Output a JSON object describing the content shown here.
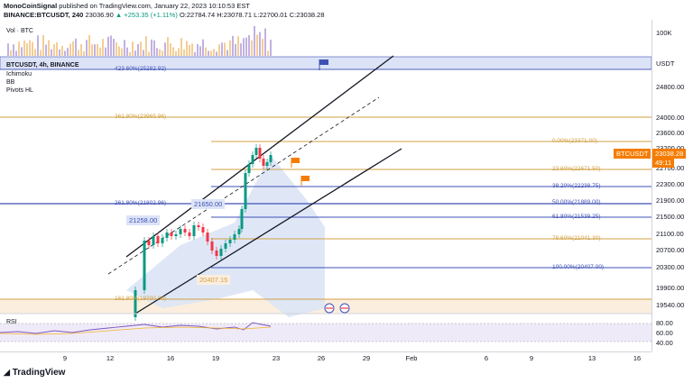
{
  "header": {
    "author": "MonoCoinSignal",
    "published": "published on TradingView.com, January 22, 2023 10:10:53 EST",
    "symbol": "BINANCE:BTCUSDT, 240",
    "last": "23036.90",
    "change": "▲ +253.35 (+1.11%)",
    "ohlc": "O:22784.74 H:23078.71 L:22700.01 C:23038.28"
  },
  "legend": {
    "volume": "Vol · BTC",
    "symbol_line": "BTCUSDT, 4h, BINANCE",
    "indicators": [
      "Ichimoku",
      "BB",
      "Pivots HL"
    ],
    "rsi": "RSI"
  },
  "price_axis": {
    "currency": "USDT",
    "volume_label": "100K",
    "labels": [
      "24800.00",
      "24000.00",
      "23600.00",
      "23200.00",
      "22700.00",
      "22300.00",
      "21900.00",
      "21500.00",
      "21100.00",
      "20700.00",
      "20300.00",
      "19900.00",
      "19540.00"
    ],
    "current_price": "23038.28",
    "current_symbol": "BTCUSDT",
    "countdown": "49:11",
    "rsi_labels": [
      "80.00",
      "60.00",
      "40.00"
    ]
  },
  "time_axis": [
    "9",
    "12",
    "16",
    "19",
    "23",
    "26",
    "29",
    "Feb",
    "6",
    "9",
    "13",
    "16"
  ],
  "fib_levels": [
    {
      "label": "423.60%(25282.92)",
      "color": "#3f51b5"
    },
    {
      "label": "361.80%(23965.96)",
      "color": "#d1a043"
    },
    {
      "label": "0.00%(23371.00)",
      "color": "#d1a043"
    },
    {
      "label": "23.60%(22671.50)",
      "color": "#d1a043"
    },
    {
      "label": "38.20%(22238.75)",
      "color": "#3f51b5"
    },
    {
      "label": "50.00%(21889.00)",
      "color": "#3f51b5"
    },
    {
      "label": "61.80%(21539.25)",
      "color": "#3f51b5"
    },
    {
      "label": "78.60%(21041.30)",
      "color": "#d1a043"
    },
    {
      "label": "100.00%(20407.00)",
      "color": "#3f51b5"
    },
    {
      "label": "261.80%(21802.96)",
      "color": "#3f51b5"
    },
    {
      "label": "161.80%(19700.00)",
      "color": "#d1a043"
    }
  ],
  "annotations": {
    "pivot_high_1": "21258.00",
    "pivot_high_2": "21650.00",
    "pivot_low": "20407.15"
  },
  "footer": {
    "brand": "TradingView"
  },
  "colors": {
    "up": "#089981",
    "down": "#f23645",
    "fib_gold": "#d1a043",
    "fib_blue": "#3f51b5",
    "price_tag": "#f57c00"
  }
}
